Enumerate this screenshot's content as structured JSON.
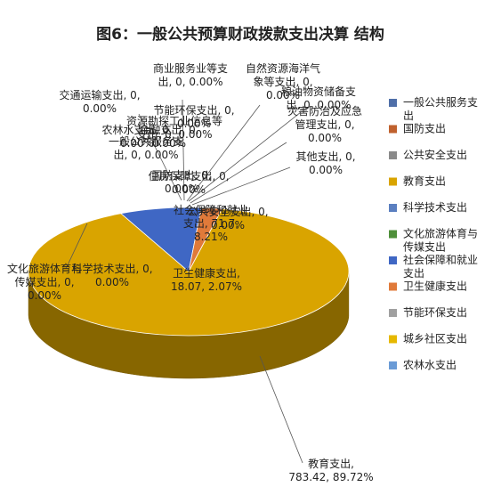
{
  "chart_data": {
    "type": "pie",
    "title": "图6：一般公共预算财政拨款支出决算 结构",
    "unit_note": "",
    "legend_position": "right",
    "three_d": true,
    "slices": [
      {
        "name": "一般公共服务支出",
        "value": 0,
        "percent": "0.00%",
        "color": "#4F6FA8"
      },
      {
        "name": "国防支出",
        "value": 0,
        "percent": "0.00%",
        "color": "#C0612E"
      },
      {
        "name": "公共安全支出",
        "value": 0,
        "percent": "0.00%",
        "color": "#8A8A8A"
      },
      {
        "name": "教育支出",
        "value": 783.42,
        "percent": "89.72%",
        "color": "#D9A400"
      },
      {
        "name": "科学技术支出",
        "value": 0,
        "percent": "0.00%",
        "color": "#5B7FC0"
      },
      {
        "name": "文化旅游体育与传媒支出",
        "value": 0,
        "percent": "0.00%",
        "color": "#4E8F3A"
      },
      {
        "name": "社会保障和就业支出",
        "value": 71.7,
        "percent": "8.21%",
        "color": "#3F67C4"
      },
      {
        "name": "卫生健康支出",
        "value": 18.07,
        "percent": "2.07%",
        "color": "#E07A3A"
      },
      {
        "name": "节能环保支出",
        "value": 0,
        "percent": "0.00%",
        "color": "#A0A0A0"
      },
      {
        "name": "城乡社区支出",
        "value": 0,
        "percent": "0.00%",
        "color": "#E6B800"
      },
      {
        "name": "农林水支出",
        "value": 0,
        "percent": "0.00%",
        "color": "#6A9BD6"
      },
      {
        "name": "交通运输支出",
        "value": 0,
        "percent": "0.00%",
        "color": "#8DB600"
      },
      {
        "name": "资源勘探工业信息等支出",
        "value": 0,
        "percent": "0.00%",
        "color": "#7F7F7F"
      },
      {
        "name": "商业服务业等支出",
        "value": 0,
        "percent": "0.00%",
        "color": "#C09000"
      },
      {
        "name": "金融支出",
        "value": 0,
        "percent": "0.00%",
        "color": "#2E5597"
      },
      {
        "name": "自然资源海洋气象等支出",
        "value": 0,
        "percent": "0.00%",
        "color": "#9E480E"
      },
      {
        "name": "住房保障支出",
        "value": 0,
        "percent": "0.00%",
        "color": "#636363"
      },
      {
        "name": "粮油物资储备支出",
        "value": 0,
        "percent": "0.00%",
        "color": "#997300"
      },
      {
        "name": "灾害防治及应急管理支出",
        "value": 0,
        "percent": "0.00%",
        "color": "#264478"
      },
      {
        "name": "其他支出",
        "value": 0,
        "percent": "0.00%",
        "color": "#43682B"
      }
    ],
    "data_labels": [
      {
        "lines": [
          "商业服务业等支",
          "出, 0, 0.00%"
        ]
      },
      {
        "lines": [
          "自然资源海洋气",
          "象等支出, 0,",
          "0.00%"
        ]
      },
      {
        "lines": [
          "粮油物资储备支",
          "出, 0, 0.00%"
        ]
      },
      {
        "lines": [
          "交通运输支出, 0,",
          "0.00%"
        ]
      },
      {
        "lines": [
          "节能环保支出, 0,",
          "0.00%"
        ]
      },
      {
        "lines": [
          "资源勘探工业信息等",
          "支出, 0, 0.00%"
        ]
      },
      {
        "lines": [
          "灾害防治及应急",
          "管理支出, 0,",
          "0.00%"
        ]
      },
      {
        "lines": [
          "农林水支出, 0,",
          "0.00%"
        ]
      },
      {
        "lines": [
          "金融支出, 0,",
          "0.00%"
        ]
      },
      {
        "lines": [
          "一般公共服务支",
          "出, 0, 0.00%"
        ]
      },
      {
        "lines": [
          "其他支出, 0,",
          "0.00%"
        ]
      },
      {
        "lines": [
          "住房保障支出, 0,",
          "0.00%"
        ]
      },
      {
        "lines": [
          "国防支出, 0,",
          "0.00%"
        ]
      },
      {
        "lines": [
          "社会保障和就业",
          "支出, 71.7,",
          "8.21%"
        ]
      },
      {
        "lines": [
          "公共安全支出, 0,",
          "0.00%"
        ]
      },
      {
        "lines": [
          "文化旅游体育与",
          "传媒支出, 0,",
          "0.00%"
        ]
      },
      {
        "lines": [
          "科学技术支出, 0,",
          "0.00%"
        ]
      },
      {
        "lines": [
          "卫生健康支出,",
          "18.07, 2.07%"
        ]
      },
      {
        "lines": [
          "教育支出,",
          "783.42, 89.72%"
        ]
      }
    ],
    "legend_entries": [
      {
        "lines": [
          "一般公共服务支",
          "出"
        ],
        "color": "#4F6FA8"
      },
      {
        "lines": [
          "国防支出"
        ],
        "color": "#C0612E"
      },
      {
        "lines": [
          "公共安全支出"
        ],
        "color": "#8A8A8A"
      },
      {
        "lines": [
          "教育支出"
        ],
        "color": "#D9A400"
      },
      {
        "lines": [
          "科学技术支出"
        ],
        "color": "#5B7FC0"
      },
      {
        "lines": [
          "文化旅游体育与",
          "传媒支出"
        ],
        "color": "#4E8F3A"
      },
      {
        "lines": [
          "社会保障和就业",
          "支出"
        ],
        "color": "#3F67C4"
      },
      {
        "lines": [
          "卫生健康支出"
        ],
        "color": "#E07A3A"
      },
      {
        "lines": [
          "节能环保支出"
        ],
        "color": "#A0A0A0"
      },
      {
        "lines": [
          "城乡社区支出"
        ],
        "color": "#E6B800"
      },
      {
        "lines": [
          "农林水支出"
        ],
        "color": "#6A9BD6"
      }
    ]
  }
}
